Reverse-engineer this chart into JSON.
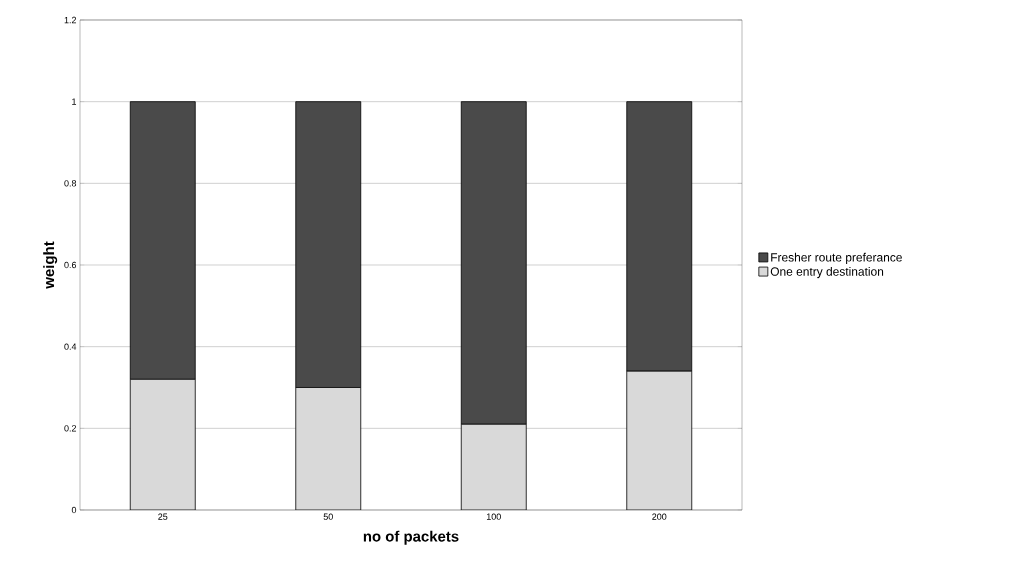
{
  "chart_data": {
    "type": "bar",
    "stacked": true,
    "xlabel": "no of packets",
    "ylabel": "weight",
    "categories": [
      "25",
      "50",
      "100",
      "200"
    ],
    "series": [
      {
        "name": "One entry destination",
        "color": "#d9d9d9",
        "values": [
          0.32,
          0.3,
          0.21,
          0.34
        ]
      },
      {
        "name": "Fresher route preferance",
        "color": "#4a4a4a",
        "values": [
          0.68,
          0.7,
          0.79,
          0.66
        ]
      }
    ],
    "ylim": [
      0,
      1.2
    ],
    "yticks": [
      0,
      0.2,
      0.4,
      0.6,
      0.8,
      1,
      1.2
    ],
    "grid": "y",
    "legend": "right"
  }
}
